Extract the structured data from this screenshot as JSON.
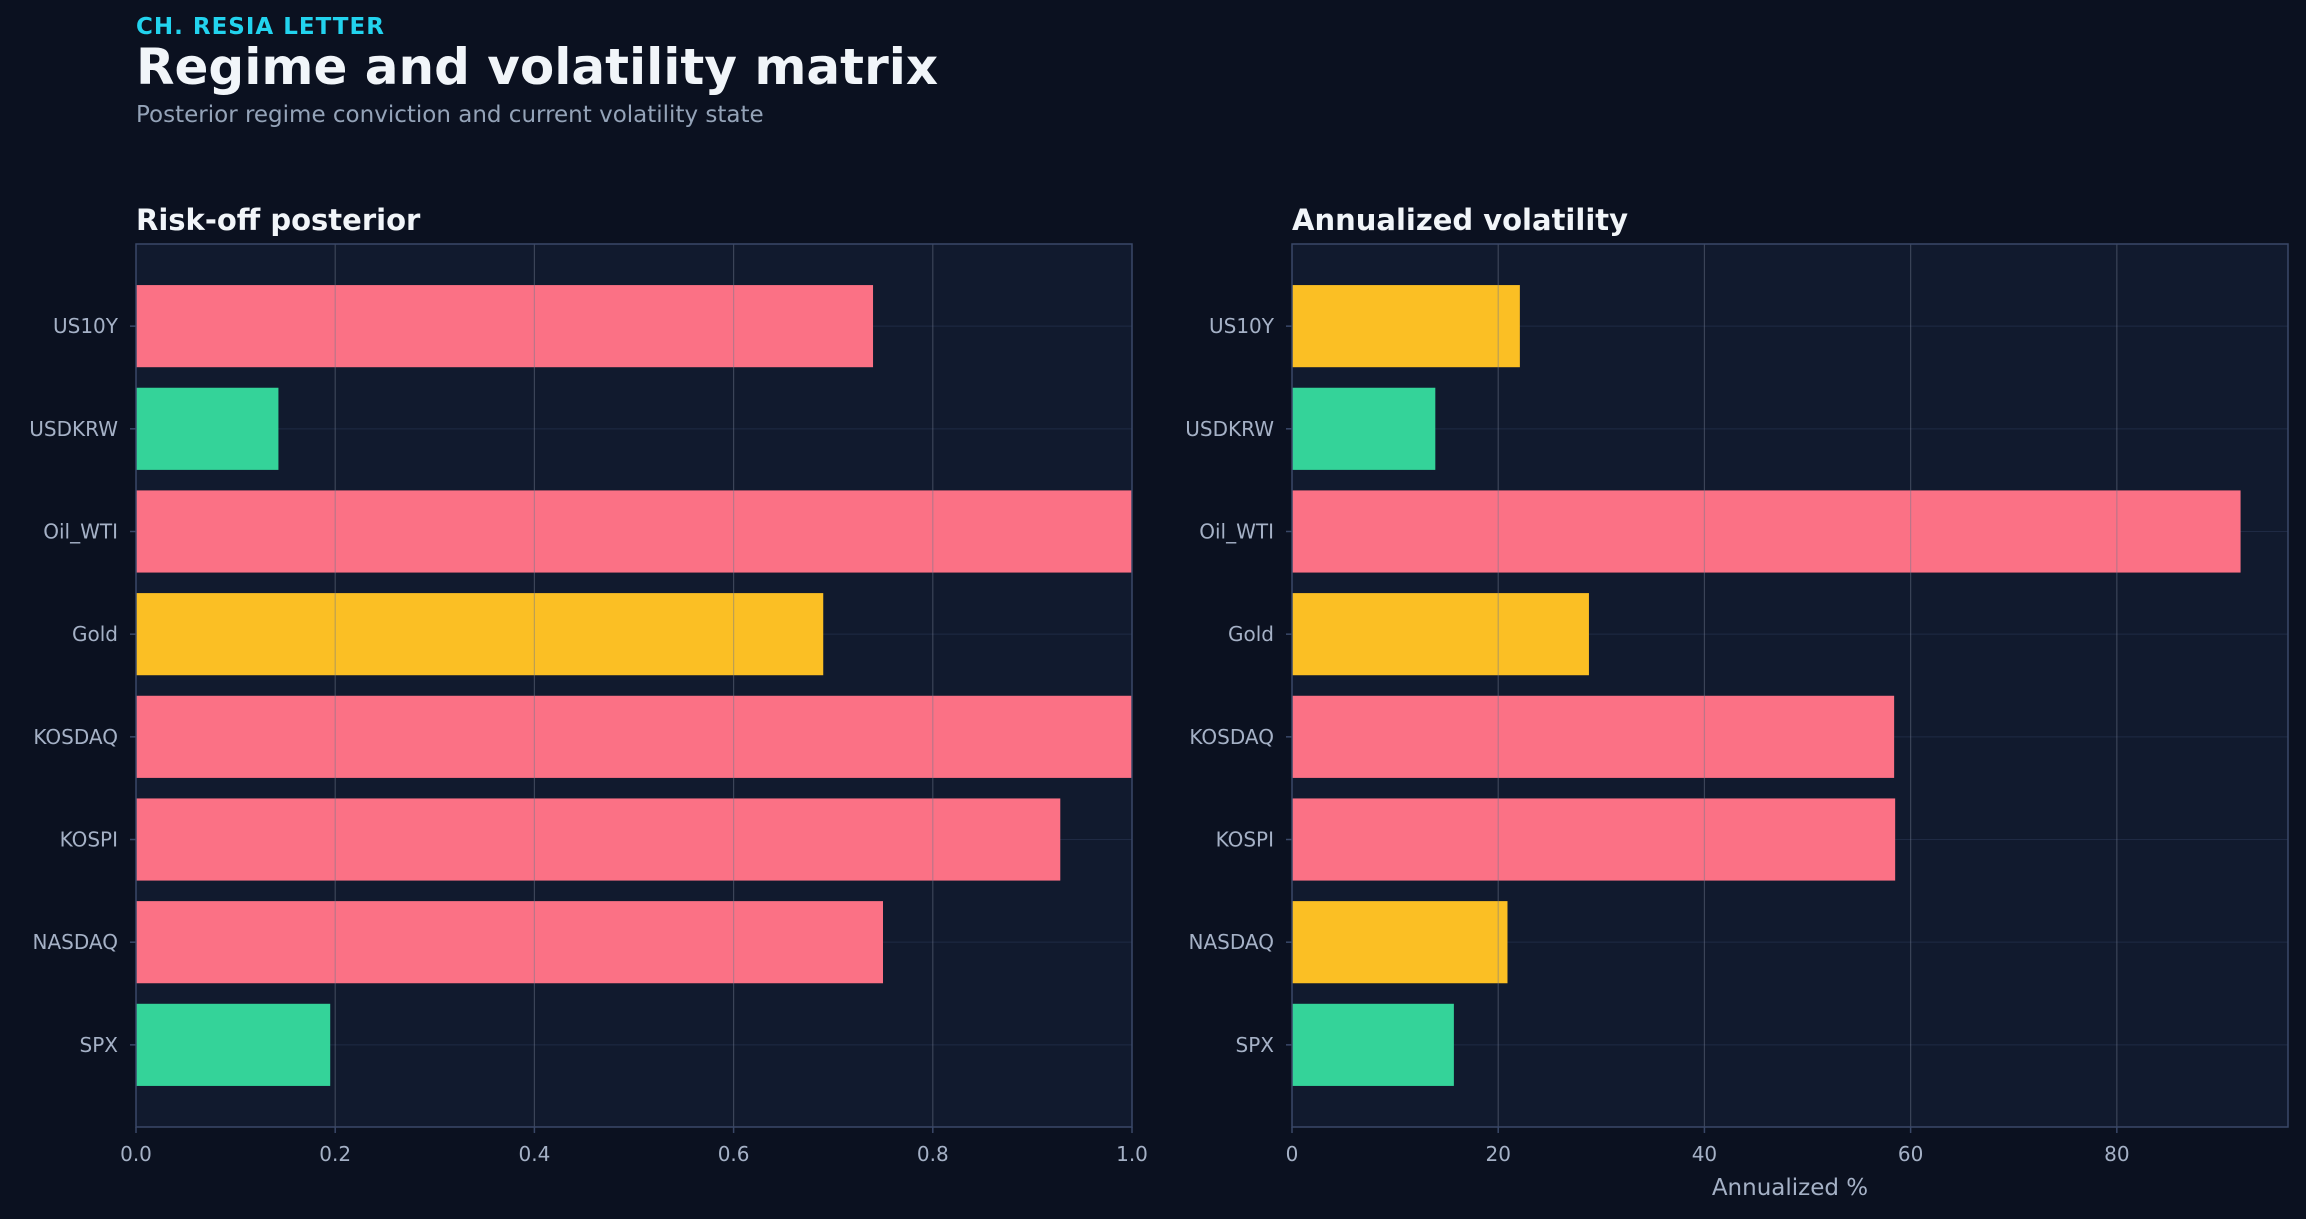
{
  "header": {
    "kicker": "CH. RESIA LETTER",
    "title": "Regime and volatility matrix",
    "subtitle": "Posterior regime conviction and current volatility state"
  },
  "colors": {
    "background": "#0b1120",
    "plot_background": "#111a2e",
    "risk_off": "#fb7185",
    "neutral": "#fbbf24",
    "risk_on": "#34d399",
    "accent": "#22d3ee"
  },
  "chart_data": [
    {
      "type": "bar",
      "orientation": "horizontal",
      "title": "Risk-off posterior",
      "xlabel": "",
      "categories": [
        "SPX",
        "NASDAQ",
        "KOSPI",
        "KOSDAQ",
        "Gold",
        "Oil_WTI",
        "USDKRW",
        "US10Y"
      ],
      "values": [
        0.195,
        0.75,
        0.928,
        1.0,
        0.69,
        1.0,
        0.143,
        0.74
      ],
      "bar_colors": [
        "#34d399",
        "#fb7185",
        "#fb7185",
        "#fb7185",
        "#fbbf24",
        "#fb7185",
        "#34d399",
        "#fb7185"
      ],
      "xlim": [
        0,
        1
      ],
      "xticks": [
        "0.0",
        "0.2",
        "0.4",
        "0.6",
        "0.8",
        "1.0"
      ],
      "xtick_values": [
        0,
        0.2,
        0.4,
        0.6,
        0.8,
        1.0
      ],
      "grid": true
    },
    {
      "type": "bar",
      "orientation": "horizontal",
      "title": "Annualized volatility",
      "xlabel": "Annualized %",
      "categories": [
        "SPX",
        "NASDAQ",
        "KOSPI",
        "KOSDAQ",
        "Gold",
        "Oil_WTI",
        "USDKRW",
        "US10Y"
      ],
      "values": [
        15.7,
        20.9,
        58.5,
        58.4,
        28.8,
        92.0,
        13.9,
        22.1
      ],
      "bar_colors": [
        "#34d399",
        "#fbbf24",
        "#fb7185",
        "#fb7185",
        "#fbbf24",
        "#fb7185",
        "#34d399",
        "#fbbf24"
      ],
      "xlim": [
        0,
        96.6
      ],
      "xticks": [
        "0",
        "20",
        "40",
        "60",
        "80"
      ],
      "xtick_values": [
        0,
        20,
        40,
        60,
        80
      ],
      "grid": true
    }
  ]
}
